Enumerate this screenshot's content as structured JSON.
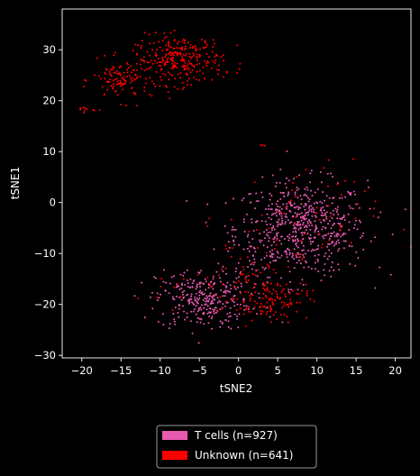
{
  "chart_data": {
    "type": "scatter",
    "xlabel": "tSNE2",
    "ylabel": "tSNE1",
    "xlim": [
      -22.5,
      22.0
    ],
    "ylim": [
      -30.5,
      38.0
    ],
    "xticks": [
      -20,
      -15,
      -10,
      -5,
      0,
      5,
      10,
      15,
      20
    ],
    "yticks": [
      -30,
      -20,
      -10,
      0,
      10,
      20,
      30
    ],
    "grid": false,
    "legend_placement": "below the plot, centered",
    "series": [
      {
        "name": "T cells (n=927)",
        "color": "#e75ab0",
        "count": 927,
        "clusters": [
          {
            "cx": 8.0,
            "cy": -5.0,
            "sx": 4.2,
            "sy": 4.6,
            "n": 600
          },
          {
            "cx": -4.5,
            "cy": -19.0,
            "sx": 3.0,
            "sy": 3.0,
            "n": 300
          },
          {
            "cx": 2.5,
            "cy": -12.0,
            "sx": 3.0,
            "sy": 4.0,
            "n": 27
          }
        ]
      },
      {
        "name": "Unknown (n=641)",
        "color": "#ff0000",
        "count": 641,
        "clusters": [
          {
            "cx": -7.5,
            "cy": 28.0,
            "sx": 2.8,
            "sy": 2.4,
            "n": 280
          },
          {
            "cx": -15.0,
            "cy": 24.0,
            "sx": 1.8,
            "sy": 2.0,
            "n": 110
          },
          {
            "cx": -19.5,
            "cy": 18.3,
            "sx": 0.6,
            "sy": 0.3,
            "n": 10
          },
          {
            "cx": 4.0,
            "cy": -19.0,
            "sx": 2.5,
            "sy": 2.0,
            "n": 120
          },
          {
            "cx": 0.5,
            "cy": -15.0,
            "sx": 3.5,
            "sy": 4.0,
            "n": 50
          },
          {
            "cx": 8.0,
            "cy": -3.0,
            "sx": 5.0,
            "sy": 5.5,
            "n": 60
          },
          {
            "cx": -10.0,
            "cy": -18.0,
            "sx": 1.5,
            "sy": 1.5,
            "n": 8
          },
          {
            "cx": 3.2,
            "cy": 11.2,
            "sx": 0.2,
            "sy": 0.2,
            "n": 3
          }
        ]
      }
    ]
  }
}
